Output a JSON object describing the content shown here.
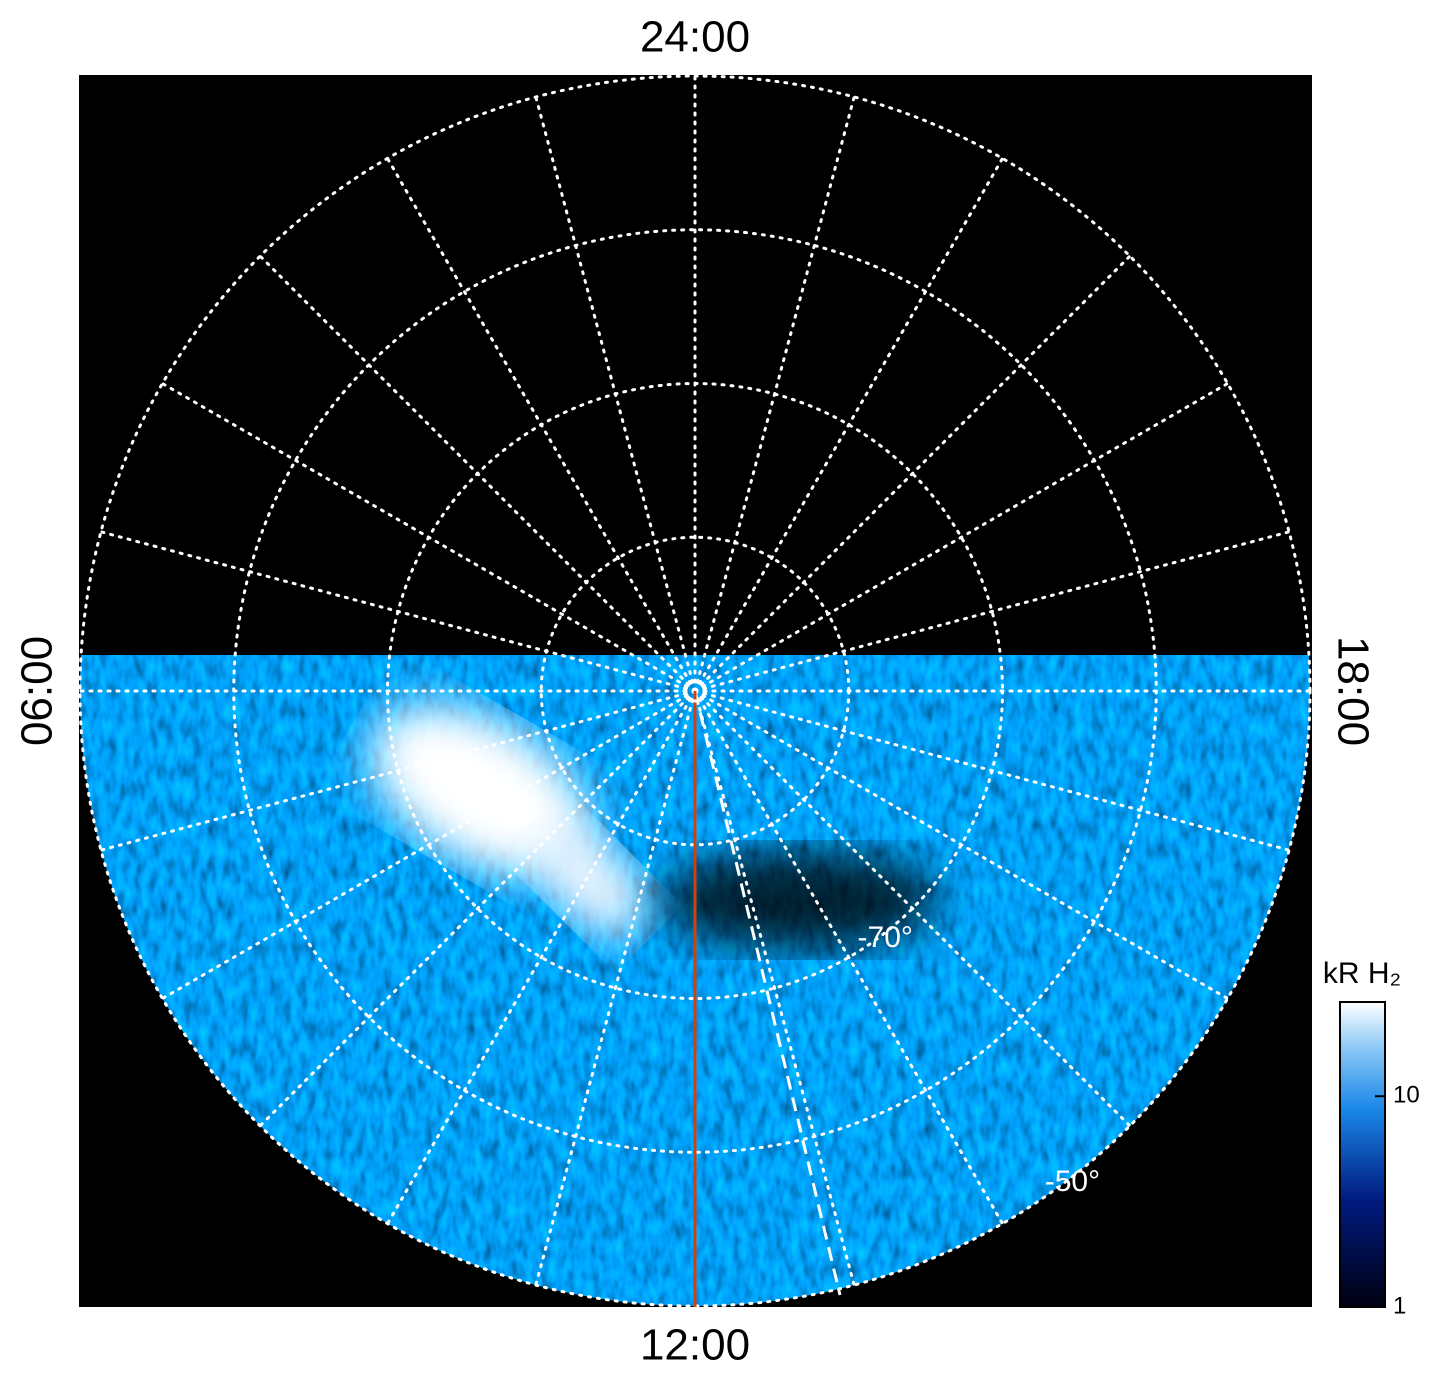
{
  "chart_data": {
    "type": "polar-image",
    "time_labels": {
      "top": "24:00",
      "bottom": "12:00",
      "left": "06:00",
      "right": "18:00"
    },
    "rlim": [
      -90,
      -50
    ],
    "rgrid": [
      -80,
      -70,
      -60,
      -50
    ],
    "rticks": [
      {
        "value": -70,
        "label": "-70°"
      },
      {
        "value": -50,
        "label": "-50°"
      }
    ],
    "hour_step": 1,
    "colorbar": {
      "label": "kR H₂",
      "lim": [
        1,
        28
      ],
      "log": true,
      "ticks": [
        1,
        10
      ]
    }
  }
}
